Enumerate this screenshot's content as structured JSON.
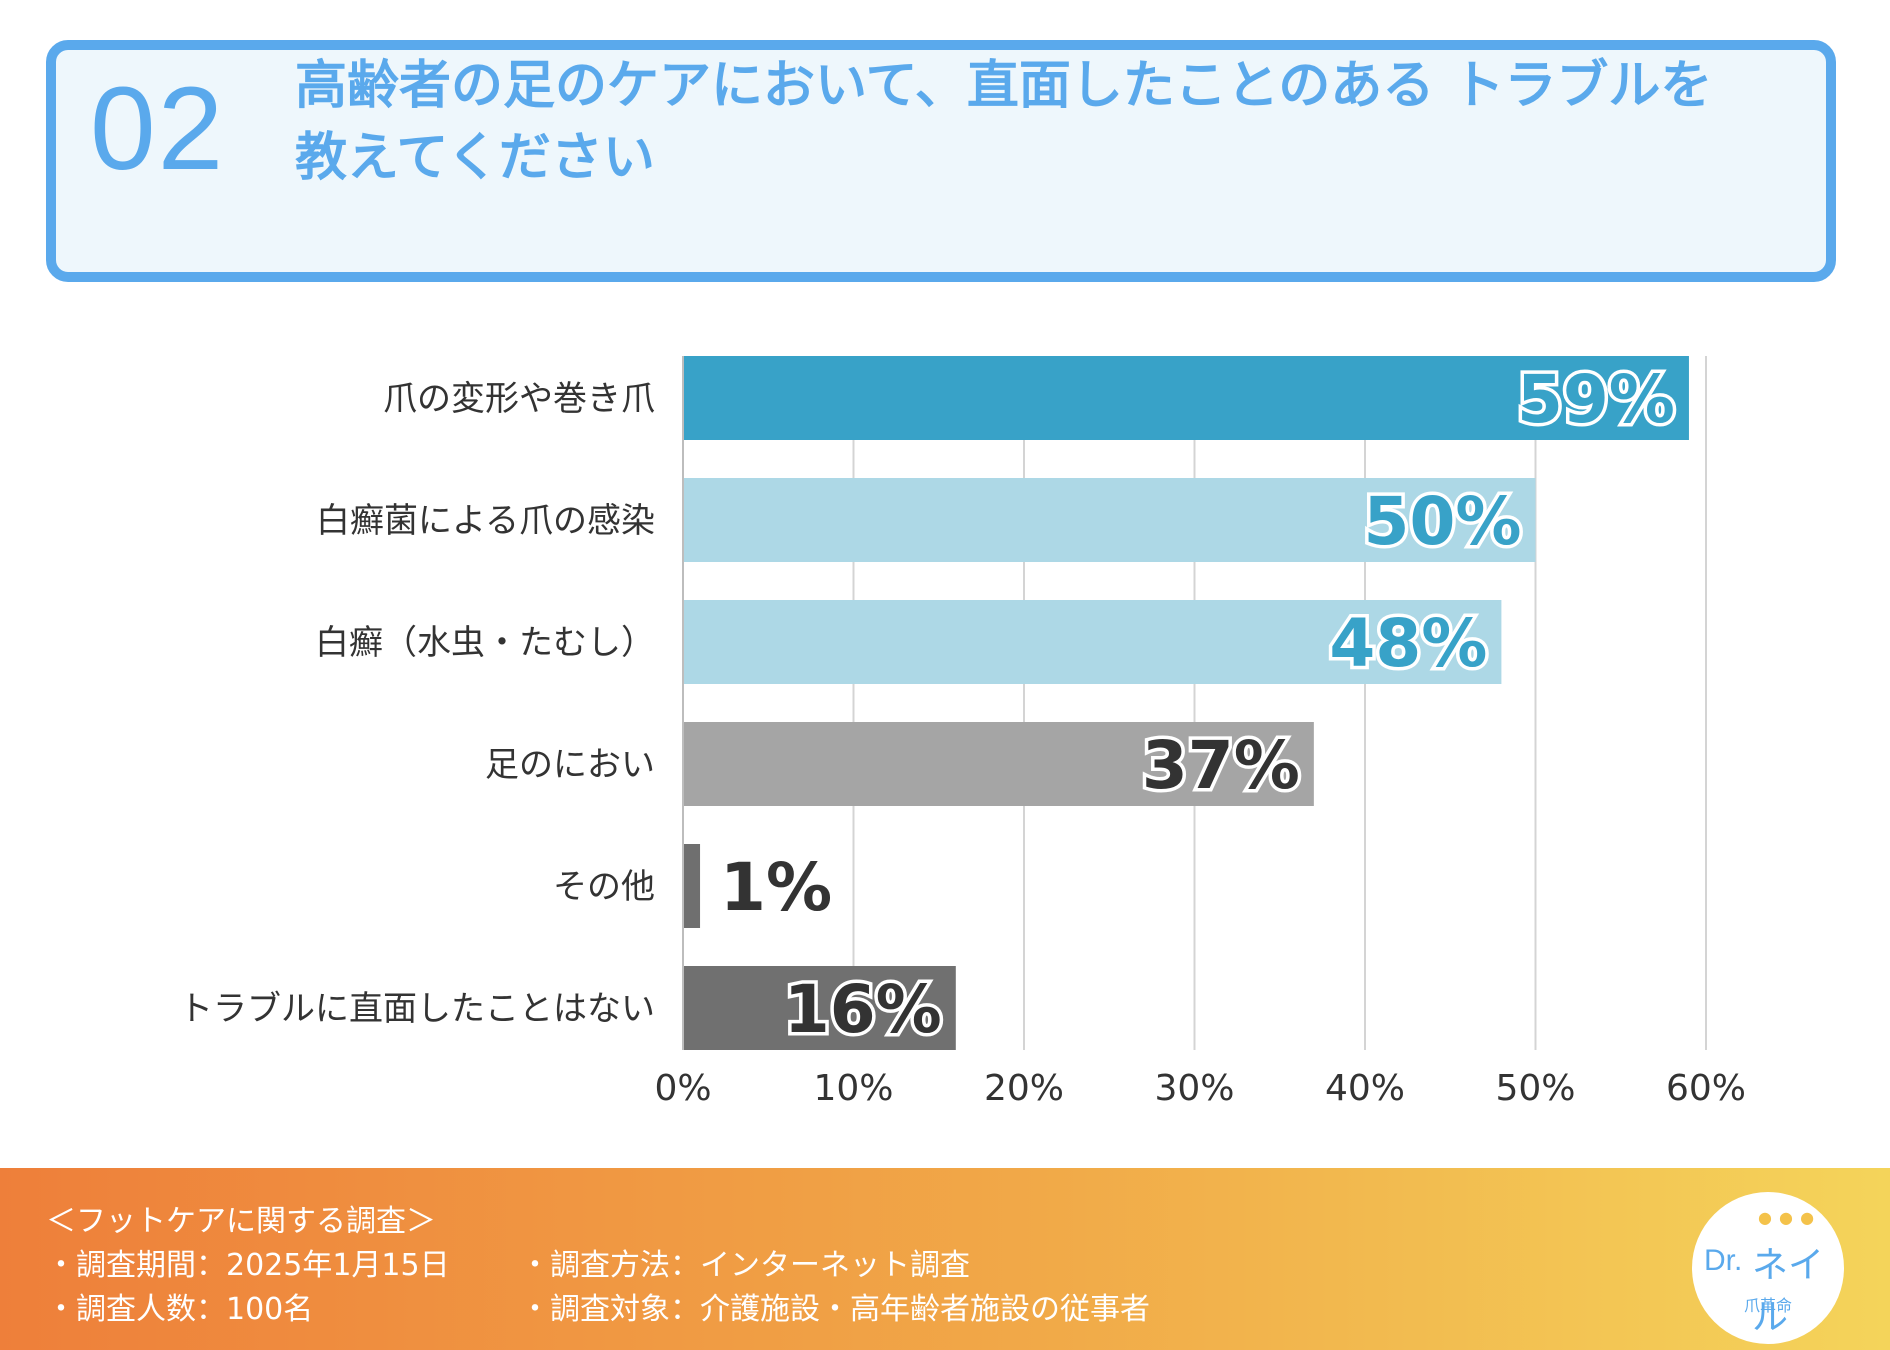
{
  "header": {
    "number": "02",
    "question": "高齢者の足のケアにおいて、直面したことのある トラブルを教えてください"
  },
  "chart_data": {
    "type": "bar",
    "orientation": "horizontal",
    "categories": [
      "爪の変形や巻き爪",
      "白癬菌による爪の感染",
      "白癬（水虫・たむし）",
      "足のにおい",
      "その他",
      "トラブルに直面したことはない"
    ],
    "values": [
      59,
      50,
      48,
      37,
      1,
      16
    ],
    "value_labels": [
      "59%",
      "50%",
      "48%",
      "37%",
      "1%",
      "16%"
    ],
    "colors": [
      "#38a2c8",
      "#add8e6",
      "#add8e6",
      "#a5a5a5",
      "#6f6f6f",
      "#707070"
    ],
    "label_colors": [
      "#38a2c8",
      "#38a2c8",
      "#38a2c8",
      "#333333",
      "#333333",
      "#333333"
    ],
    "xlim": [
      0,
      60
    ],
    "xticks": [
      0,
      10,
      20,
      30,
      40,
      50,
      60
    ],
    "xtick_labels": [
      "0%",
      "10%",
      "20%",
      "30%",
      "40%",
      "50%",
      "60%"
    ],
    "grid": true,
    "title": "",
    "xlabel": "",
    "ylabel": ""
  },
  "footer": {
    "survey_title": "＜フットケアに関する調査＞",
    "period": "・調査期間：2025年1月15日",
    "method": "・調査方法：インターネット調査",
    "count": "・調査人数：100名",
    "target": "・調査対象：介護施設・高年齢者施設の従事者"
  },
  "logo": {
    "prefix": "Dr.",
    "name": "ネイル",
    "sub": "爪革命"
  }
}
